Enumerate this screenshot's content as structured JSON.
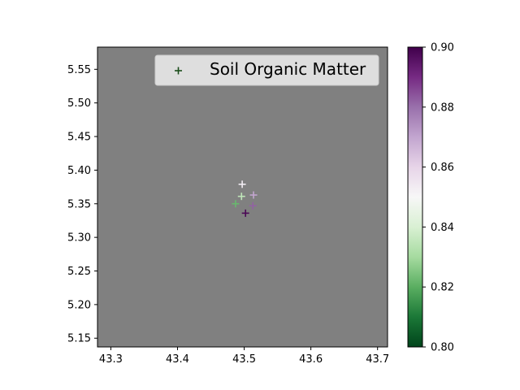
{
  "chart_data": {
    "type": "scatter",
    "title": "",
    "xlabel": "",
    "ylabel": "",
    "xlim": [
      43.28,
      43.715
    ],
    "ylim": [
      5.137,
      5.583
    ],
    "x_ticks": [
      43.3,
      43.4,
      43.5,
      43.6,
      43.7
    ],
    "x_tick_labels": [
      "43.3",
      "43.4",
      "43.5",
      "43.6",
      "43.7"
    ],
    "y_ticks": [
      5.15,
      5.2,
      5.25,
      5.3,
      5.35,
      5.4,
      5.45,
      5.5,
      5.55
    ],
    "y_tick_labels": [
      "5.15",
      "5.20",
      "5.25",
      "5.30",
      "5.35",
      "5.40",
      "5.45",
      "5.50",
      "5.55"
    ],
    "plot_background": "#808080",
    "marker": "plus",
    "grid": false,
    "legend": {
      "label": "Soil Organic Matter",
      "placement": "top-right",
      "marker_color": "#1a4d1a"
    },
    "colorbar": {
      "colormap": "PRGn",
      "vmin": 0.8,
      "vmax": 0.9,
      "ticks": [
        0.8,
        0.82,
        0.84,
        0.86,
        0.88,
        0.9
      ],
      "tick_labels": [
        "0.80",
        "0.82",
        "0.84",
        "0.86",
        "0.88",
        "0.90"
      ]
    },
    "series": [
      {
        "name": "Soil Organic Matter",
        "points": [
          {
            "x": 43.497,
            "y": 5.379,
            "value": 0.853
          },
          {
            "x": 43.514,
            "y": 5.363,
            "value": 0.87
          },
          {
            "x": 43.496,
            "y": 5.361,
            "value": 0.835
          },
          {
            "x": 43.487,
            "y": 5.35,
            "value": 0.822
          },
          {
            "x": 43.513,
            "y": 5.347,
            "value": 0.882
          },
          {
            "x": 43.502,
            "y": 5.336,
            "value": 0.898
          }
        ]
      }
    ]
  }
}
